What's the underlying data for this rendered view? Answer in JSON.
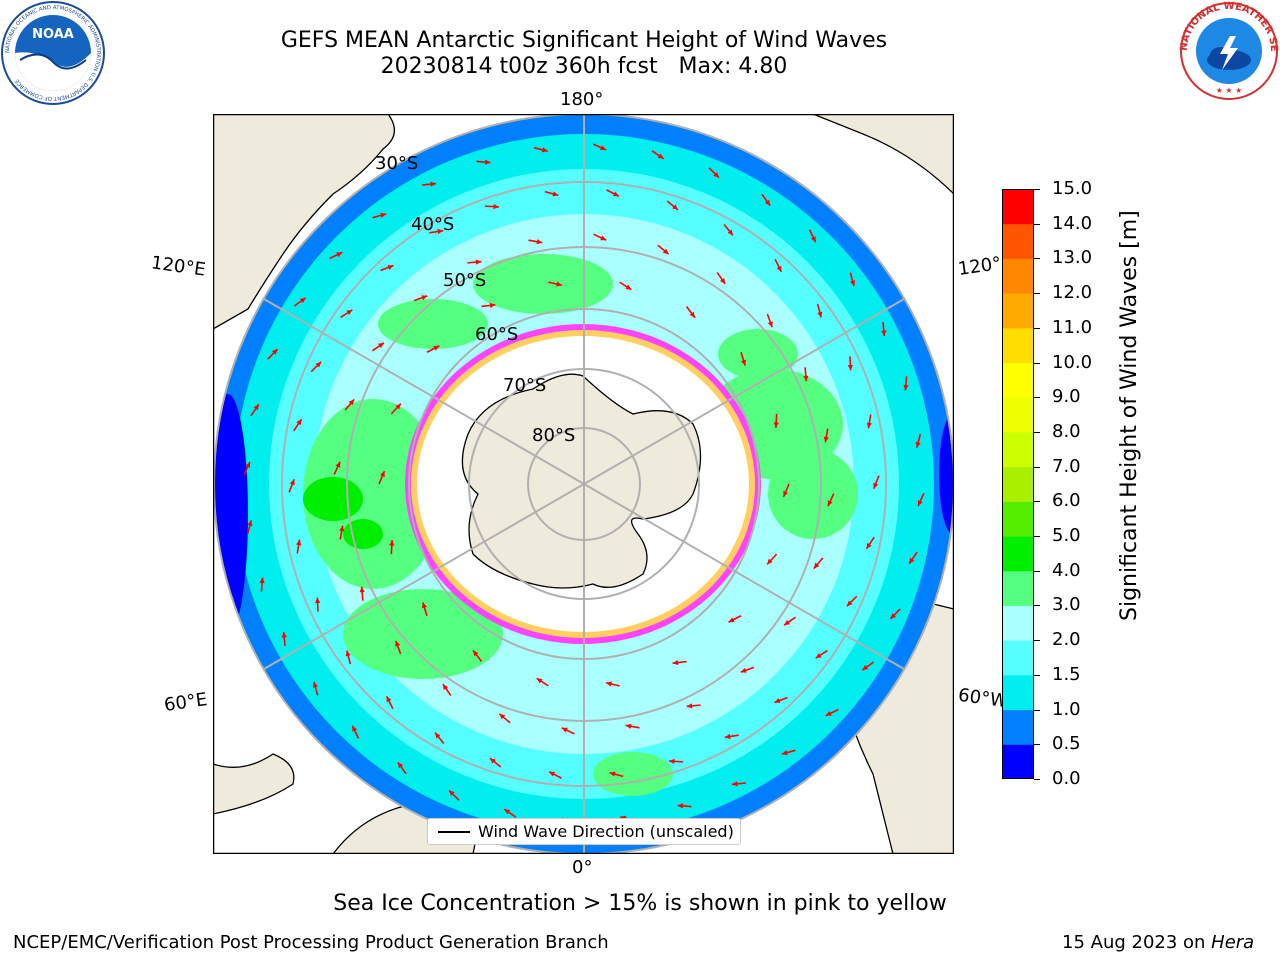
{
  "title": {
    "line1": "GEFS MEAN Antarctic Significant Height of Wind Waves",
    "line2": "20230814 t00z 360h fcst   Max: 4.80"
  },
  "logos": {
    "noaa": {
      "text": "NOAA",
      "ring_text": "NATIONAL OCEANIC AND ATMOSPHERIC ADMINISTRATION  U.S. DEPARTMENT OF COMMERCE"
    },
    "nws": {
      "ring_text": "NATIONAL WEATHER SERVICE"
    }
  },
  "map": {
    "projection": "south-polar-stereographic",
    "longitude_labels": {
      "top": "180°",
      "bottom": "0°",
      "upper_left": "120°E",
      "lower_left": "60°E",
      "upper_right": "120°",
      "lower_right": "60°W"
    },
    "latitude_labels": [
      "30°S",
      "40°S",
      "50°S",
      "60°S",
      "70°S",
      "80°S"
    ],
    "legend_label": "Wind Wave Direction (unscaled)",
    "colors": {
      "land": "#eeebdc",
      "ice_free": "#ffffff",
      "arrow": "#ff0000",
      "grid": "#b0b0b0"
    }
  },
  "colorbar": {
    "label": "Significant Height of Wind Waves [m]",
    "ticks": [
      "0.0",
      "0.5",
      "1.0",
      "1.5",
      "2.0",
      "3.0",
      "4.0",
      "5.0",
      "6.0",
      "7.0",
      "8.0",
      "9.0",
      "10.0",
      "11.0",
      "12.0",
      "13.0",
      "14.0",
      "15.0"
    ],
    "colors": [
      "#0000ff",
      "#0080ff",
      "#00eeee",
      "#55ffff",
      "#aaffff",
      "#55ff80",
      "#00ee00",
      "#55ee00",
      "#aaee00",
      "#ccff00",
      "#eeff00",
      "#ffff00",
      "#ffdd00",
      "#ffaa00",
      "#ff8800",
      "#ff5500",
      "#ff0000"
    ]
  },
  "notes": {
    "sea_ice": "Sea Ice Concentration > 15% is shown in pink to yellow"
  },
  "footer": {
    "left": "NCEP/EMC/Verification Post Processing Product Generation Branch",
    "date": "15 Aug 2023 on ",
    "machine": "Hera"
  }
}
